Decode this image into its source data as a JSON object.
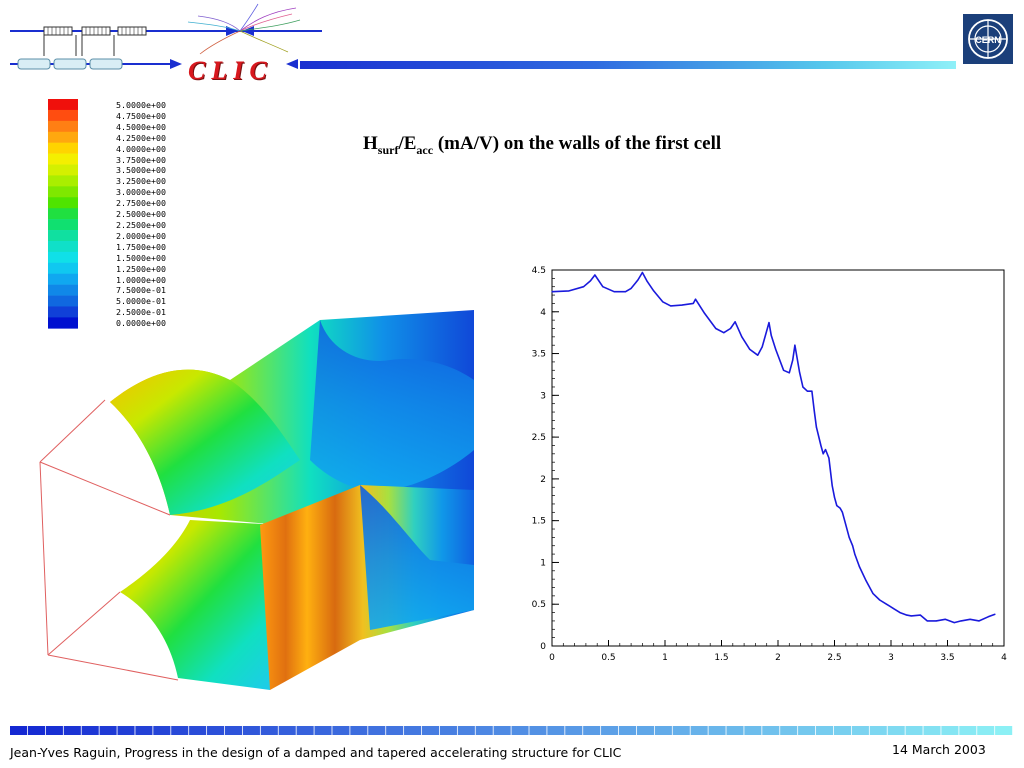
{
  "header": {
    "clic_logo": "CLIC",
    "cern_logo": "CERN",
    "colors": {
      "clic_red": "#d8181e",
      "bar_blue": "#1a2fd0",
      "bar_cyan": "#8ff0f8",
      "cern_navy": "#1b3f7a"
    }
  },
  "title": {
    "main_letter": "H",
    "sub1": "surf",
    "slash_letter": "/E",
    "sub2": "acc",
    "rest": " (mA/V) on the walls of the first cell"
  },
  "colormap_legend": {
    "values": [
      "5.0000e+00",
      "4.7500e+00",
      "4.5000e+00",
      "4.2500e+00",
      "4.0000e+00",
      "3.7500e+00",
      "3.5000e+00",
      "3.2500e+00",
      "3.0000e+00",
      "2.7500e+00",
      "2.5000e+00",
      "2.2500e+00",
      "2.0000e+00",
      "1.7500e+00",
      "1.5000e+00",
      "1.2500e+00",
      "1.0000e+00",
      "7.5000e-01",
      "5.0000e-01",
      "2.5000e-01",
      "0.0000e+00"
    ],
    "colors": [
      "#f0100c",
      "#ff4d10",
      "#ff7f14",
      "#ffa80f",
      "#ffd400",
      "#f4ef00",
      "#d4f000",
      "#aaee00",
      "#7fe800",
      "#4fe400",
      "#20e040",
      "#10e070",
      "#10e0a0",
      "#10e0c8",
      "#10e0e8",
      "#10c8f0",
      "#10a8f0",
      "#1088e8",
      "#1068e0",
      "#1040d8",
      "#0010d0"
    ]
  },
  "chart_data": {
    "type": "line",
    "xlim": [
      0,
      4
    ],
    "ylim": [
      0,
      4.5
    ],
    "x_ticks": [
      "0",
      "0.5",
      "1",
      "1.5",
      "2",
      "2.5",
      "3",
      "3.5",
      "4"
    ],
    "y_ticks": [
      "0",
      "0.5",
      "1",
      "1.5",
      "2",
      "2.5",
      "3",
      "3.5",
      "4",
      "4.5"
    ],
    "grid": false,
    "series": [
      {
        "color": "#1a1adc",
        "x": [
          0.0,
          0.15,
          0.28,
          0.34,
          0.38,
          0.45,
          0.55,
          0.65,
          0.7,
          0.76,
          0.8,
          0.84,
          0.9,
          0.98,
          1.05,
          1.15,
          1.25,
          1.27,
          1.35,
          1.45,
          1.52,
          1.58,
          1.62,
          1.68,
          1.75,
          1.82,
          1.86,
          1.92,
          1.94,
          1.98,
          2.05,
          2.1,
          2.13,
          2.15,
          2.19,
          2.22,
          2.26,
          2.3,
          2.32,
          2.34,
          2.38,
          2.4,
          2.42,
          2.45,
          2.48,
          2.5,
          2.52,
          2.55,
          2.57,
          2.6,
          2.63,
          2.66,
          2.68,
          2.72,
          2.78,
          2.84,
          2.9,
          2.96,
          3.02,
          3.08,
          3.14,
          3.18,
          3.26,
          3.32,
          3.4,
          3.48,
          3.56,
          3.62,
          3.7,
          3.78,
          3.86,
          3.92
        ],
        "y": [
          4.24,
          4.25,
          4.3,
          4.37,
          4.44,
          4.3,
          4.24,
          4.24,
          4.28,
          4.38,
          4.47,
          4.37,
          4.25,
          4.12,
          4.07,
          4.08,
          4.1,
          4.15,
          3.98,
          3.8,
          3.75,
          3.8,
          3.88,
          3.7,
          3.55,
          3.48,
          3.58,
          3.87,
          3.72,
          3.55,
          3.3,
          3.27,
          3.42,
          3.6,
          3.28,
          3.1,
          3.05,
          3.05,
          2.82,
          2.62,
          2.4,
          2.3,
          2.35,
          2.25,
          1.92,
          1.78,
          1.68,
          1.65,
          1.6,
          1.45,
          1.3,
          1.2,
          1.1,
          0.95,
          0.78,
          0.63,
          0.55,
          0.5,
          0.45,
          0.4,
          0.37,
          0.36,
          0.37,
          0.3,
          0.3,
          0.32,
          0.28,
          0.3,
          0.32,
          0.3,
          0.35,
          0.38
        ]
      }
    ]
  },
  "footer": {
    "author_line": "Jean-Yves  Raguin, Progress in the design of a damped and tapered accelerating structure for CLIC",
    "date": "14 March 2003"
  }
}
